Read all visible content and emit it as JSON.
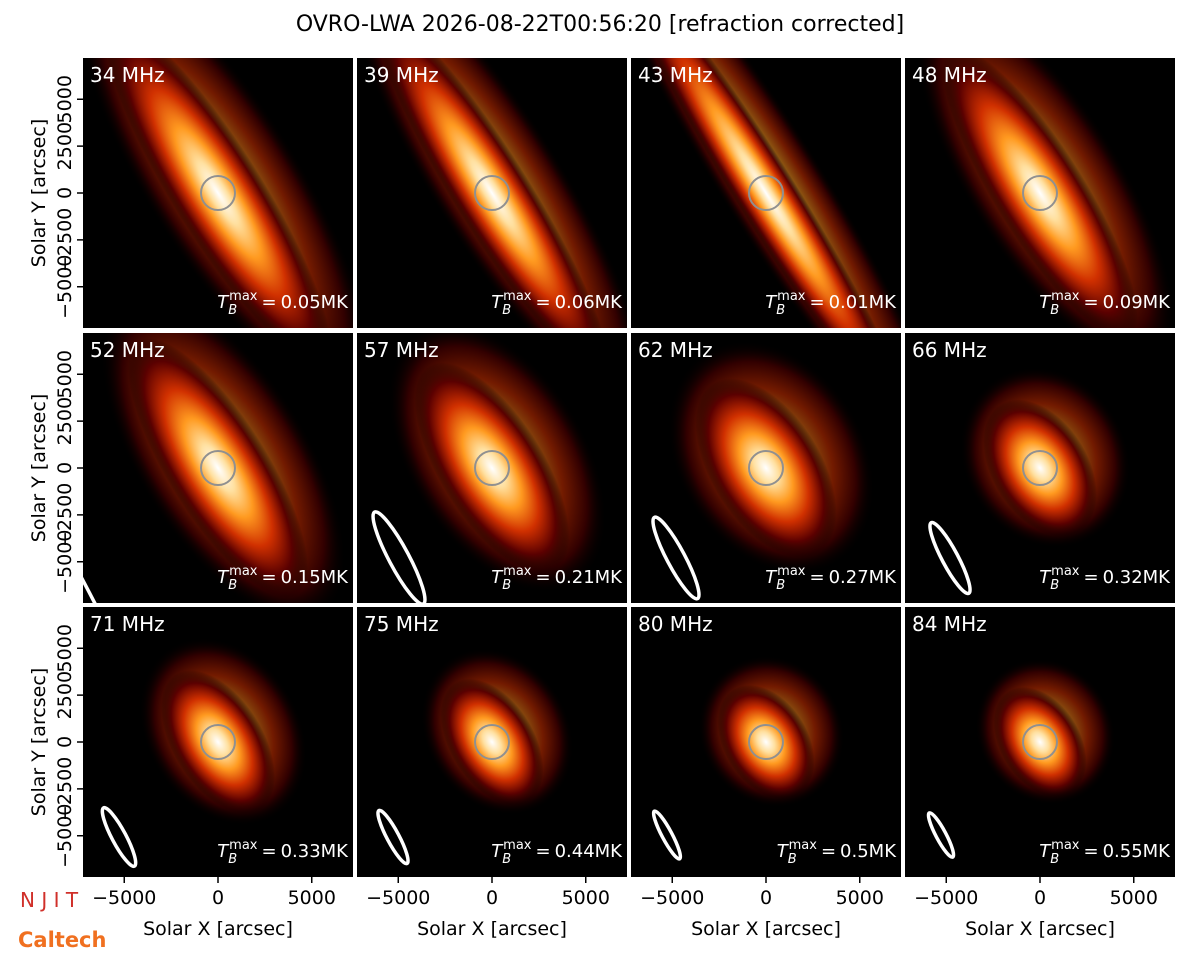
{
  "chart_data": {
    "type": "heatmap",
    "title": "OVRO-LWA 2026-08-22T00:56:20 [refraction corrected]",
    "xlabel": "Solar X [arcsec]",
    "ylabel": "Solar Y [arcsec]",
    "xlim": [
      -7200,
      7200
    ],
    "ylim": [
      -7200,
      7200
    ],
    "xticks": [
      {
        "value": -5000,
        "label": "−5000"
      },
      0,
      5000
    ],
    "yticks": [
      {
        "value": -5000,
        "label": "−5000"
      },
      {
        "value": -2500,
        "label": "−2500"
      },
      0,
      2500,
      5000
    ],
    "categories": [
      "34 MHz",
      "39 MHz",
      "43 MHz",
      "48 MHz",
      "52 MHz",
      "57 MHz",
      "62 MHz",
      "66 MHz",
      "71 MHz",
      "75 MHz",
      "80 MHz",
      "84 MHz"
    ],
    "values": [
      0.05,
      0.06,
      0.01,
      0.09,
      0.15,
      0.21,
      0.27,
      0.32,
      0.33,
      0.44,
      0.5,
      0.55
    ],
    "value_labels": [
      "0.05MK",
      "0.06MK",
      "0.01MK",
      "0.09MK",
      "0.15MK",
      "0.21MK",
      "0.27MK",
      "0.32MK",
      "0.33MK",
      "0.44MK",
      "0.5MK",
      "0.55MK"
    ],
    "tb_symbol": "T",
    "tb_sub": "B",
    "tb_sup": "max",
    "tb_relation": "=",
    "logos": [
      "N J I T",
      "Caltech"
    ]
  }
}
